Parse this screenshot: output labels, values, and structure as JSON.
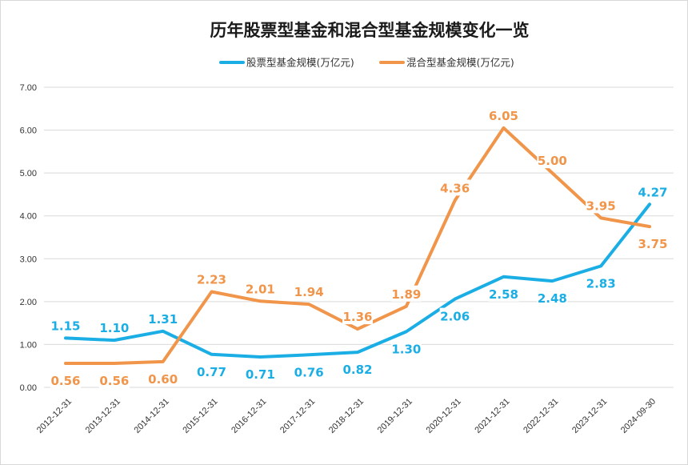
{
  "chart_data": {
    "type": "line",
    "title": "历年股票型基金和混合型基金规模变化一览",
    "categories": [
      "2012-12-31",
      "2013-12-31",
      "2014-12-31",
      "2015-12-31",
      "2016-12-31",
      "2017-12-31",
      "2018-12-31",
      "2019-12-31",
      "2020-12-31",
      "2021-12-31",
      "2022-12-31",
      "2023-12-31",
      "2024-09-30"
    ],
    "series": [
      {
        "name": "股票型基金规模(万亿元)",
        "color": "#1aaee5",
        "values": [
          1.15,
          1.1,
          1.31,
          0.77,
          0.71,
          0.76,
          0.82,
          1.3,
          2.06,
          2.58,
          2.48,
          2.83,
          4.27
        ],
        "labels": [
          "1.15",
          "1.10",
          "1.31",
          "0.77",
          "0.71",
          "0.76",
          "0.82",
          "1.30",
          "2.06",
          "2.58",
          "2.48",
          "2.83",
          "4.27"
        ]
      },
      {
        "name": "混合型基金规模(万亿元)",
        "color": "#f0954a",
        "values": [
          0.56,
          0.56,
          0.6,
          2.23,
          2.01,
          1.94,
          1.36,
          1.89,
          4.36,
          6.05,
          5.0,
          3.95,
          3.75
        ],
        "labels": [
          "0.56",
          "0.56",
          "0.60",
          "2.23",
          "2.01",
          "1.94",
          "1.36",
          "1.89",
          "4.36",
          "6.05",
          "5.00",
          "3.95",
          "3.75"
        ]
      }
    ],
    "y_ticks": [
      "0.00",
      "1.00",
      "2.00",
      "3.00",
      "4.00",
      "5.00",
      "6.00",
      "7.00"
    ],
    "ylim": [
      0,
      7
    ],
    "grid": true,
    "legend": "top-center"
  }
}
